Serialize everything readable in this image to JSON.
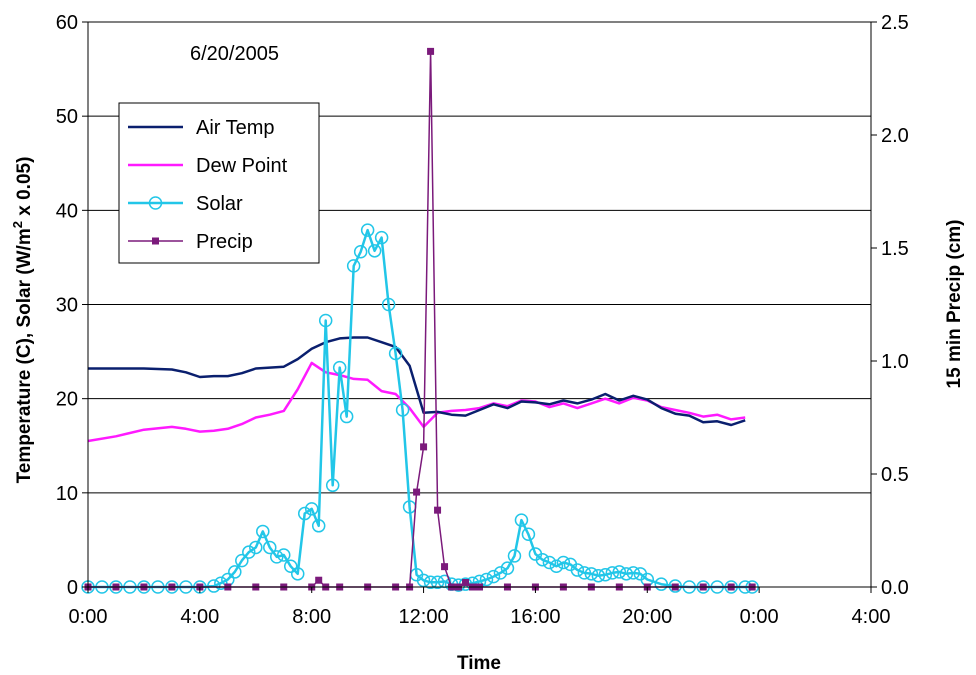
{
  "chart_data": {
    "type": "line",
    "annotation": "6/20/2005",
    "xlabel": "Time",
    "ylabel_left_parts": [
      "Temperature (C), Solar  (W/m",
      "2",
      " x 0.05)"
    ],
    "ylabel_right": "15 min Precip (cm)",
    "x_ticks": [
      "0:00",
      "4:00",
      "8:00",
      "12:00",
      "16:00",
      "20:00",
      "0:00",
      "4:00"
    ],
    "x_range_hours": [
      0,
      28
    ],
    "y_left_range": [
      0,
      60
    ],
    "y_left_ticks": [
      "0",
      "10",
      "20",
      "30",
      "40",
      "50",
      "60"
    ],
    "y_right_range": [
      0,
      2.5
    ],
    "y_right_ticks": [
      "0.0",
      "0.5",
      "1.0",
      "1.5",
      "2.0",
      "2.5"
    ],
    "grid": "horizontal",
    "legend_position": "left",
    "colors": {
      "air_temp": "#0a1f6e",
      "dew_point": "#ff1aff",
      "solar": "#22c6e8",
      "precip": "#7b1a7b"
    },
    "series": [
      {
        "name": "Air Temp",
        "axis": "left",
        "marker": "none",
        "color_key": "air_temp",
        "points": [
          [
            0,
            23.2
          ],
          [
            1,
            23.2
          ],
          [
            2,
            23.2
          ],
          [
            3,
            23.1
          ],
          [
            3.5,
            22.8
          ],
          [
            4,
            22.3
          ],
          [
            4.5,
            22.4
          ],
          [
            5,
            22.4
          ],
          [
            5.5,
            22.7
          ],
          [
            6,
            23.2
          ],
          [
            6.5,
            23.3
          ],
          [
            7,
            23.4
          ],
          [
            7.5,
            24.2
          ],
          [
            8,
            25.3
          ],
          [
            8.5,
            26
          ],
          [
            9,
            26.4
          ],
          [
            9.5,
            26.5
          ],
          [
            10,
            26.5
          ],
          [
            10.5,
            26
          ],
          [
            11,
            25.5
          ],
          [
            11.5,
            23.5
          ],
          [
            12,
            18.5
          ],
          [
            12.5,
            18.6
          ],
          [
            13,
            18.3
          ],
          [
            13.5,
            18.2
          ],
          [
            14,
            18.8
          ],
          [
            14.5,
            19.4
          ],
          [
            15,
            19
          ],
          [
            15.5,
            19.7
          ],
          [
            16,
            19.6
          ],
          [
            16.5,
            19.4
          ],
          [
            17,
            19.8
          ],
          [
            17.5,
            19.5
          ],
          [
            18,
            19.9
          ],
          [
            18.5,
            20.5
          ],
          [
            19,
            19.8
          ],
          [
            19.5,
            20.3
          ],
          [
            20,
            19.9
          ],
          [
            20.5,
            19
          ],
          [
            21,
            18.4
          ],
          [
            21.5,
            18.2
          ],
          [
            22,
            17.5
          ],
          [
            22.5,
            17.6
          ],
          [
            23,
            17.2
          ],
          [
            23.5,
            17.7
          ]
        ]
      },
      {
        "name": "Dew Point",
        "axis": "left",
        "marker": "none",
        "color_key": "dew_point",
        "points": [
          [
            0,
            15.5
          ],
          [
            1,
            16
          ],
          [
            2,
            16.7
          ],
          [
            3,
            17
          ],
          [
            3.5,
            16.8
          ],
          [
            4,
            16.5
          ],
          [
            4.5,
            16.6
          ],
          [
            5,
            16.8
          ],
          [
            5.5,
            17.3
          ],
          [
            6,
            18
          ],
          [
            6.5,
            18.3
          ],
          [
            7,
            18.7
          ],
          [
            7.5,
            21
          ],
          [
            8,
            23.8
          ],
          [
            8.5,
            22.8
          ],
          [
            9,
            22.5
          ],
          [
            9.5,
            22.1
          ],
          [
            10,
            22
          ],
          [
            10.5,
            20.8
          ],
          [
            11,
            20.5
          ],
          [
            11.5,
            19
          ],
          [
            12,
            17
          ],
          [
            12.5,
            18.5
          ],
          [
            13,
            18.7
          ],
          [
            13.5,
            18.8
          ],
          [
            14,
            19
          ],
          [
            14.5,
            19.5
          ],
          [
            15,
            19.2
          ],
          [
            15.5,
            19.8
          ],
          [
            16,
            19.7
          ],
          [
            16.5,
            19.1
          ],
          [
            17,
            19.5
          ],
          [
            17.5,
            19
          ],
          [
            18,
            19.5
          ],
          [
            18.5,
            20
          ],
          [
            19,
            19.5
          ],
          [
            19.5,
            20.1
          ],
          [
            20,
            19.8
          ],
          [
            20.5,
            19.1
          ],
          [
            21,
            18.8
          ],
          [
            21.5,
            18.5
          ],
          [
            22,
            18.1
          ],
          [
            22.5,
            18.3
          ],
          [
            23,
            17.8
          ],
          [
            23.5,
            18
          ]
        ]
      },
      {
        "name": "Solar",
        "axis": "left",
        "marker": "circle",
        "color_key": "solar",
        "points": [
          [
            0,
            0
          ],
          [
            0.5,
            0
          ],
          [
            1,
            0
          ],
          [
            1.5,
            0
          ],
          [
            2,
            0
          ],
          [
            2.5,
            0
          ],
          [
            3,
            0
          ],
          [
            3.5,
            0
          ],
          [
            4,
            0
          ],
          [
            4.5,
            0.1
          ],
          [
            4.75,
            0.4
          ],
          [
            5,
            0.8
          ],
          [
            5.25,
            1.6
          ],
          [
            5.5,
            2.8
          ],
          [
            5.75,
            3.7
          ],
          [
            6,
            4.2
          ],
          [
            6.25,
            5.9
          ],
          [
            6.5,
            4.2
          ],
          [
            6.75,
            3.2
          ],
          [
            7,
            3.4
          ],
          [
            7.25,
            2.2
          ],
          [
            7.5,
            1.4
          ],
          [
            7.75,
            7.8
          ],
          [
            8,
            8.3
          ],
          [
            8.25,
            6.5
          ],
          [
            8.5,
            28.3
          ],
          [
            8.75,
            10.8
          ],
          [
            9,
            23.3
          ],
          [
            9.25,
            18.1
          ],
          [
            9.5,
            34.1
          ],
          [
            9.75,
            35.6
          ],
          [
            10,
            37.9
          ],
          [
            10.25,
            35.7
          ],
          [
            10.5,
            37.1
          ],
          [
            10.75,
            30
          ],
          [
            11,
            24.8
          ],
          [
            11.25,
            18.8
          ],
          [
            11.5,
            8.5
          ],
          [
            11.75,
            1.3
          ],
          [
            12,
            0.7
          ],
          [
            12.25,
            0.5
          ],
          [
            12.5,
            0.5
          ],
          [
            12.75,
            0.6
          ],
          [
            13,
            0.3
          ],
          [
            13.25,
            0.2
          ],
          [
            13.5,
            0.3
          ],
          [
            13.75,
            0.4
          ],
          [
            14,
            0.6
          ],
          [
            14.25,
            0.8
          ],
          [
            14.5,
            1.1
          ],
          [
            14.75,
            1.5
          ],
          [
            15,
            2
          ],
          [
            15.25,
            3.3
          ],
          [
            15.5,
            7.1
          ],
          [
            15.75,
            5.6
          ],
          [
            16,
            3.5
          ],
          [
            16.25,
            2.9
          ],
          [
            16.5,
            2.6
          ],
          [
            16.75,
            2.2
          ],
          [
            17,
            2.6
          ],
          [
            17.25,
            2.4
          ],
          [
            17.5,
            1.8
          ],
          [
            17.75,
            1.5
          ],
          [
            18,
            1.4
          ],
          [
            18.25,
            1.2
          ],
          [
            18.5,
            1.3
          ],
          [
            18.75,
            1.5
          ],
          [
            19,
            1.6
          ],
          [
            19.25,
            1.4
          ],
          [
            19.5,
            1.5
          ],
          [
            19.75,
            1.4
          ],
          [
            20,
            0.8
          ],
          [
            20.5,
            0.3
          ],
          [
            21,
            0.1
          ],
          [
            21.5,
            0
          ],
          [
            22,
            0
          ],
          [
            22.5,
            0
          ],
          [
            23,
            0
          ],
          [
            23.5,
            0
          ],
          [
            23.75,
            0
          ]
        ]
      },
      {
        "name": "Precip",
        "axis": "right",
        "marker": "square",
        "color_key": "precip",
        "points": [
          [
            0,
            0
          ],
          [
            1,
            0
          ],
          [
            2,
            0
          ],
          [
            3,
            0
          ],
          [
            4,
            0
          ],
          [
            5,
            0
          ],
          [
            6,
            0
          ],
          [
            7,
            0
          ],
          [
            8,
            0
          ],
          [
            8.25,
            0.03
          ],
          [
            8.5,
            0
          ],
          [
            9,
            0
          ],
          [
            10,
            0
          ],
          [
            11,
            0
          ],
          [
            11.5,
            0
          ],
          [
            11.75,
            0.42
          ],
          [
            12,
            0.62
          ],
          [
            12.25,
            2.37
          ],
          [
            12.5,
            0.34
          ],
          [
            12.75,
            0.09
          ],
          [
            13,
            0
          ],
          [
            13.25,
            0
          ],
          [
            13.5,
            0.02
          ],
          [
            13.75,
            0
          ],
          [
            14,
            0
          ],
          [
            15,
            0
          ],
          [
            16,
            0
          ],
          [
            17,
            0
          ],
          [
            18,
            0
          ],
          [
            19,
            0
          ],
          [
            20,
            0
          ],
          [
            21,
            0
          ],
          [
            22,
            0
          ],
          [
            23,
            0
          ],
          [
            23.75,
            0
          ]
        ]
      }
    ]
  }
}
